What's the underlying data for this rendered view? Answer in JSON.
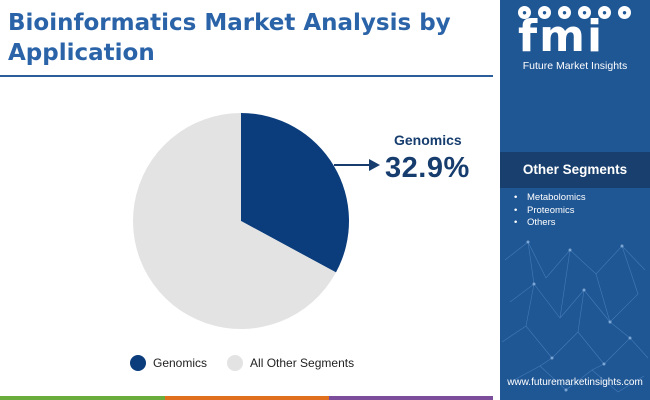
{
  "title": "Bioinformatics Market Analysis by Application",
  "chart_data": {
    "type": "pie",
    "title": "Bioinformatics Market Analysis by Application",
    "slices": [
      {
        "name": "Genomics",
        "value": 32.9,
        "color": "#0b3d7c"
      },
      {
        "name": "All Other Segments",
        "value": 67.1,
        "color": "#e3e3e3"
      }
    ],
    "callout": {
      "label": "Genomics",
      "value": "32.9%"
    },
    "legend": {
      "placement": "bottom"
    }
  },
  "legend": [
    {
      "label": "Genomics",
      "color": "#0b3d7c"
    },
    {
      "label": "All Other Segments",
      "color": "#e3e3e3"
    }
  ],
  "bottom_bar_colors": [
    "#6aad3d",
    "#e0701e",
    "#7b4d9a"
  ],
  "panel": {
    "logo_letters": "fmi",
    "logo_subtitle": "Future Market Insights",
    "logo_icons": [
      "flask-icon",
      "leaf-icon",
      "globe-icon",
      "bulb-icon",
      "person-icon",
      "gear-icon"
    ],
    "heading": "Other Segments",
    "items": [
      "Metabolomics",
      "Proteomics",
      "Others"
    ],
    "url": "www.futuremarketinsights.com",
    "background": "#1f5694"
  }
}
